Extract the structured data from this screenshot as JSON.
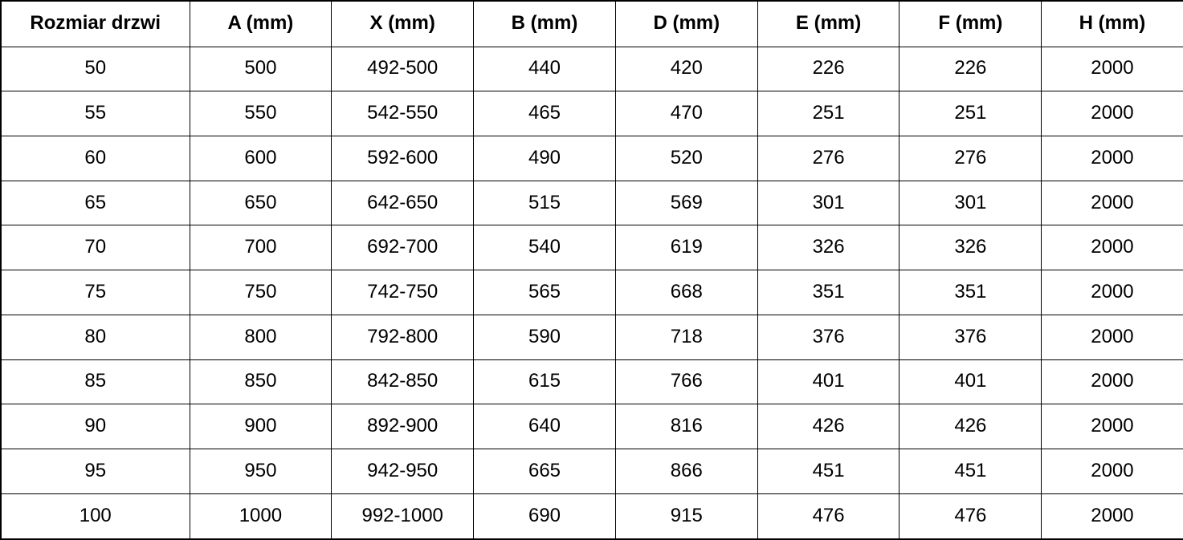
{
  "table": {
    "name": "door-dimensions-table",
    "columns": [
      "Rozmiar drzwi",
      "A (mm)",
      "X (mm)",
      "B (mm)",
      "D (mm)",
      "E (mm)",
      "F (mm)",
      "H (mm)"
    ],
    "rows": [
      [
        "50",
        "500",
        "492-500",
        "440",
        "420",
        "226",
        "226",
        "2000"
      ],
      [
        "55",
        "550",
        "542-550",
        "465",
        "470",
        "251",
        "251",
        "2000"
      ],
      [
        "60",
        "600",
        "592-600",
        "490",
        "520",
        "276",
        "276",
        "2000"
      ],
      [
        "65",
        "650",
        "642-650",
        "515",
        "569",
        "301",
        "301",
        "2000"
      ],
      [
        "70",
        "700",
        "692-700",
        "540",
        "619",
        "326",
        "326",
        "2000"
      ],
      [
        "75",
        "750",
        "742-750",
        "565",
        "668",
        "351",
        "351",
        "2000"
      ],
      [
        "80",
        "800",
        "792-800",
        "590",
        "718",
        "376",
        "376",
        "2000"
      ],
      [
        "85",
        "850",
        "842-850",
        "615",
        "766",
        "401",
        "401",
        "2000"
      ],
      [
        "90",
        "900",
        "892-900",
        "640",
        "816",
        "426",
        "426",
        "2000"
      ],
      [
        "95",
        "950",
        "942-950",
        "665",
        "866",
        "451",
        "451",
        "2000"
      ],
      [
        "100",
        "1000",
        "992-1000",
        "690",
        "915",
        "476",
        "476",
        "2000"
      ]
    ]
  },
  "colors": {
    "border": "#000000",
    "text": "#000000",
    "background": "#ffffff"
  }
}
